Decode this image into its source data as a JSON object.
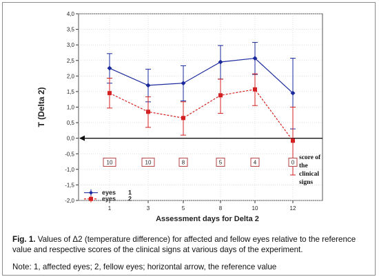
{
  "chart_data": {
    "type": "line",
    "ylabel": "T (Delta 2)",
    "xlabel": "Assessment days for Delta 2",
    "x": [
      1,
      3,
      5,
      8,
      10,
      12
    ],
    "x_tick_labels": [
      "1",
      "3",
      "5",
      "8",
      "10",
      "12"
    ],
    "ylim": [
      -2.0,
      4.0
    ],
    "y_ticks": [
      -2.0,
      -1.5,
      -1.0,
      -0.5,
      0.0,
      0.5,
      1.0,
      1.5,
      2.0,
      2.5,
      3.0,
      3.5,
      4.0
    ],
    "y_tick_labels": [
      "-2,0",
      "-1,5",
      "-1,0",
      "-0,5",
      "0,0",
      "0,5",
      "1,0",
      "1,5",
      "2,0",
      "2,5",
      "3,0",
      "3,5",
      "4,0"
    ],
    "grid": true,
    "series": [
      {
        "name": "1",
        "color": "#1a2a9c",
        "marker": "diamond",
        "line_style": "solid",
        "values": [
          2.25,
          1.7,
          1.77,
          2.45,
          2.57,
          1.45
        ],
        "error_low": [
          1.77,
          1.17,
          1.2,
          1.9,
          2.05,
          0.3
        ],
        "error_high": [
          2.72,
          2.22,
          2.33,
          2.98,
          3.08,
          2.57
        ]
      },
      {
        "name": "2",
        "color": "#d42020",
        "marker": "square",
        "line_style": "dashed",
        "values": [
          1.45,
          0.85,
          0.65,
          1.38,
          1.57,
          -0.08
        ],
        "error_low": [
          0.97,
          0.35,
          0.1,
          0.8,
          1.05,
          -1.18
        ],
        "error_high": [
          1.93,
          1.33,
          1.17,
          1.9,
          2.07,
          1.0
        ]
      }
    ],
    "clinical_scores": [
      "10",
      "10",
      "8",
      "5",
      "4",
      "0"
    ],
    "reference_value": 0.0,
    "annotation": "score of the clinical signs",
    "legend": {
      "position": "bottom-left",
      "label": "eyes",
      "entries": [
        "1",
        "2"
      ]
    }
  },
  "caption": {
    "fig_label": "Fig. 1.",
    "text": " Values of Δ2 (temperature difference) for affected and fellow eyes relative to the reference value and respective scores of the clinical signs at various days of the experiment.",
    "note": "Note: 1, affected eyes; 2, fellow eyes; horizontal arrow, the reference value"
  }
}
